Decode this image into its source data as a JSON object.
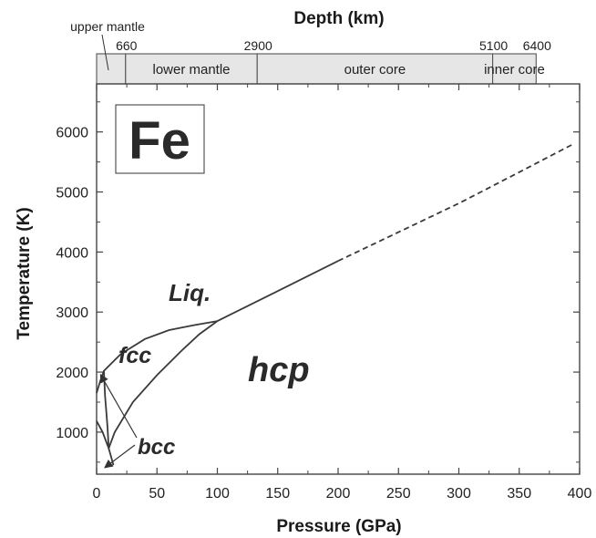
{
  "chart_data": {
    "type": "line",
    "title": "",
    "xlabel": "Pressure (GPa)",
    "ylabel": "Temperature (K)",
    "xlim": [
      0,
      400
    ],
    "ylim": [
      300,
      6800
    ],
    "x_ticks": [
      0,
      50,
      100,
      150,
      200,
      250,
      300,
      350,
      400
    ],
    "y_ticks": [
      1000,
      2000,
      3000,
      4000,
      5000,
      6000
    ],
    "element_label": "Fe",
    "depth_axis": {
      "label": "Depth (km)",
      "ticks": [
        {
          "depth": "660",
          "pressure": 24
        },
        {
          "depth": "2900",
          "pressure": 133
        },
        {
          "depth": "5100",
          "pressure": 328
        },
        {
          "depth": "6400",
          "pressure": 364
        }
      ],
      "layers": [
        {
          "name": "upper mantle",
          "from": 0,
          "to": 24
        },
        {
          "name": "lower mantle",
          "from": 24,
          "to": 133
        },
        {
          "name": "outer core",
          "from": 133,
          "to": 328
        },
        {
          "name": "inner core",
          "from": 328,
          "to": 364
        }
      ]
    },
    "phase_labels": [
      "Liq.",
      "fcc",
      "hcp",
      "bcc"
    ],
    "phase_label_colors": {
      "Liq.": "#2a2a2a",
      "fcc": "#2a2a2a",
      "hcp": "#2a7fc8",
      "bcc": "#2a2a2a"
    },
    "series": [
      {
        "values": [
          [
            0,
            1650
          ],
          [
            3,
            1850
          ],
          [
            6,
            2020
          ],
          [
            20,
            2300
          ],
          [
            40,
            2550
          ],
          [
            60,
            2700
          ],
          [
            80,
            2780
          ],
          [
            100,
            2850
          ],
          [
            150,
            3350
          ],
          [
            200,
            3850
          ]
        ],
        "style": "solid"
      },
      {
        "values": [
          [
            200,
            3850
          ],
          [
            250,
            4330
          ],
          [
            300,
            4810
          ],
          [
            350,
            5330
          ],
          [
            395,
            5800
          ]
        ],
        "style": "dashed"
      },
      {
        "values": [
          [
            0,
            1185
          ],
          [
            5,
            1000
          ],
          [
            10,
            730
          ],
          [
            14,
            450
          ]
        ],
        "style": "solid"
      },
      {
        "values": [
          [
            10,
            730
          ],
          [
            15,
            1000
          ],
          [
            30,
            1500
          ],
          [
            50,
            1950
          ],
          [
            70,
            2350
          ],
          [
            85,
            2630
          ],
          [
            100,
            2850
          ]
        ],
        "style": "solid"
      },
      {
        "values": [
          [
            6,
            2020
          ],
          [
            7,
            1600
          ],
          [
            9,
            1100
          ],
          [
            10,
            730
          ]
        ],
        "style": "solid"
      }
    ]
  }
}
